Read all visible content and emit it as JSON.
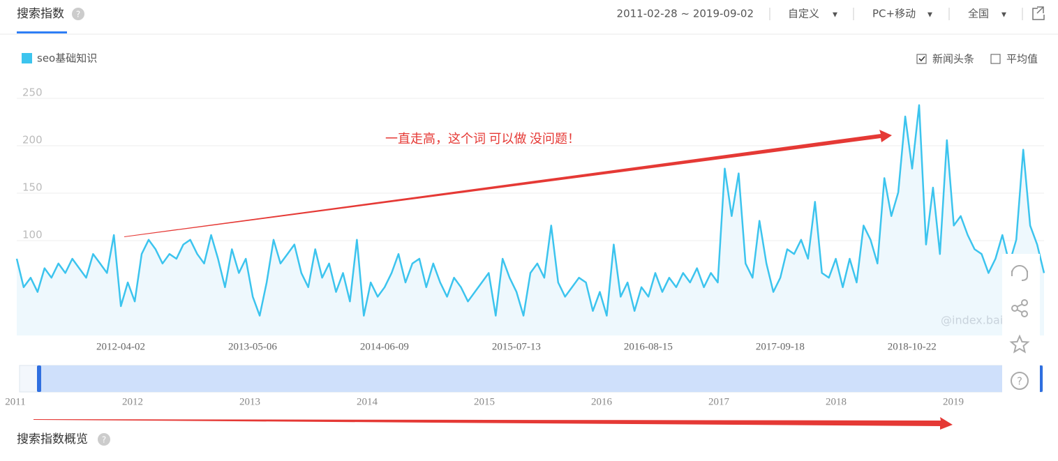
{
  "header": {
    "title": "搜索指数",
    "date_range": "2011-02-28 ~ 2019-09-02",
    "period": "自定义",
    "device": "PC+移动",
    "region": "全国"
  },
  "options": [
    {
      "label": "新闻头条",
      "checked": true
    },
    {
      "label": "平均值",
      "checked": false
    }
  ],
  "chart_data": {
    "type": "line",
    "annotation": "一直走高，这个词 可以做 没问题！",
    "watermark": "@index.baic",
    "categories": [
      null,
      null,
      null,
      null,
      null,
      null,
      null,
      null,
      null,
      null,
      null,
      null,
      null,
      null,
      null,
      null,
      null,
      null,
      null,
      "2012-04-02",
      null,
      null,
      null,
      null,
      null,
      null,
      null,
      null,
      null,
      null,
      null,
      null,
      null,
      null,
      null,
      null,
      null,
      null,
      "2013-05-06",
      null,
      null,
      null,
      null,
      null,
      null,
      null,
      null,
      null,
      null,
      null,
      null,
      null,
      null,
      null,
      null,
      null,
      null,
      "2014-06-09",
      null,
      null,
      null,
      null,
      null,
      null,
      null,
      null,
      null,
      null,
      null,
      null,
      null,
      null,
      null,
      null,
      null,
      null,
      "2015-07-13",
      null,
      null,
      null,
      null,
      null,
      null,
      null,
      null,
      null,
      null,
      null,
      null,
      null,
      null,
      null,
      null,
      null,
      null,
      "2016-08-15",
      null,
      null,
      null,
      null,
      null,
      null,
      null,
      null,
      null,
      null,
      null,
      null,
      null,
      null,
      null,
      null,
      null,
      null,
      "2017-09-18",
      null,
      null,
      null,
      null,
      null,
      null,
      null,
      null,
      null,
      null,
      null,
      null,
      null,
      null,
      null,
      null,
      null,
      null,
      "2018-10-22",
      null,
      null,
      null,
      null,
      null,
      null,
      null,
      null,
      null,
      null,
      null,
      null,
      null,
      null,
      null
    ],
    "series": [
      {
        "name": "seo基础知识",
        "color": "#3cc4ee",
        "values": [
          75,
          45,
          55,
          40,
          65,
          55,
          70,
          60,
          75,
          65,
          55,
          80,
          70,
          60,
          100,
          25,
          50,
          30,
          80,
          95,
          85,
          70,
          80,
          75,
          90,
          95,
          80,
          70,
          100,
          75,
          45,
          85,
          60,
          75,
          35,
          15,
          50,
          95,
          70,
          80,
          90,
          60,
          45,
          85,
          55,
          70,
          40,
          60,
          30,
          95,
          15,
          50,
          35,
          45,
          60,
          80,
          50,
          70,
          75,
          45,
          70,
          50,
          35,
          55,
          45,
          30,
          40,
          50,
          60,
          15,
          75,
          55,
          40,
          15,
          60,
          70,
          55,
          110,
          50,
          35,
          45,
          55,
          50,
          20,
          40,
          15,
          90,
          35,
          50,
          20,
          45,
          35,
          60,
          40,
          55,
          45,
          60,
          50,
          65,
          45,
          60,
          50,
          170,
          120,
          165,
          70,
          55,
          115,
          70,
          40,
          55,
          85,
          80,
          95,
          75,
          135,
          60,
          55,
          75,
          45,
          75,
          50,
          110,
          95,
          70,
          160,
          120,
          145,
          225,
          170,
          237,
          90,
          150,
          80,
          200,
          110,
          120,
          100,
          85,
          80,
          60,
          75,
          100,
          70,
          95,
          190,
          110,
          90,
          60
        ]
      }
    ],
    "ylim": [
      0,
      250
    ],
    "yticks": [
      100,
      150,
      200,
      250
    ],
    "grid": true
  },
  "slider": {
    "years": [
      "2011",
      "2012",
      "2013",
      "2014",
      "2015",
      "2016",
      "2017",
      "2018",
      "2019"
    ]
  },
  "footer": {
    "title": "搜索指数概览"
  }
}
